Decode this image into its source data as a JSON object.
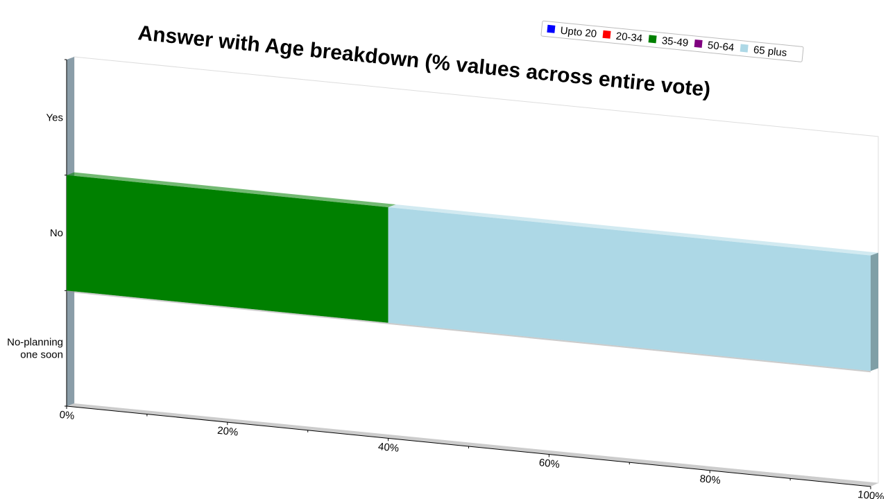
{
  "chart_data": {
    "type": "bar",
    "orientation": "horizontal",
    "stacked": true,
    "percent_stacked": true,
    "three_d": true,
    "title": "Answer with Age breakdown (% values across entire vote)",
    "xlabel": "",
    "ylabel": "",
    "categories": [
      "Yes",
      "No",
      "No-planning one soon"
    ],
    "series": [
      {
        "name": "Upto 20",
        "color": "#0000ff",
        "values": [
          0,
          0,
          0
        ]
      },
      {
        "name": "20-34",
        "color": "#ff0000",
        "values": [
          0,
          0,
          0
        ]
      },
      {
        "name": "35-49",
        "color": "#008000",
        "values": [
          0,
          40,
          0
        ]
      },
      {
        "name": "50-64",
        "color": "#800080",
        "values": [
          0,
          0,
          0
        ]
      },
      {
        "name": "65 plus",
        "color": "#add8e6",
        "values": [
          0,
          60,
          0
        ]
      }
    ],
    "xlim": [
      0,
      100
    ],
    "xticks": [
      "0%",
      "20%",
      "40%",
      "60%",
      "80%",
      "100%"
    ],
    "legend_position": "top-right",
    "grid": false
  }
}
